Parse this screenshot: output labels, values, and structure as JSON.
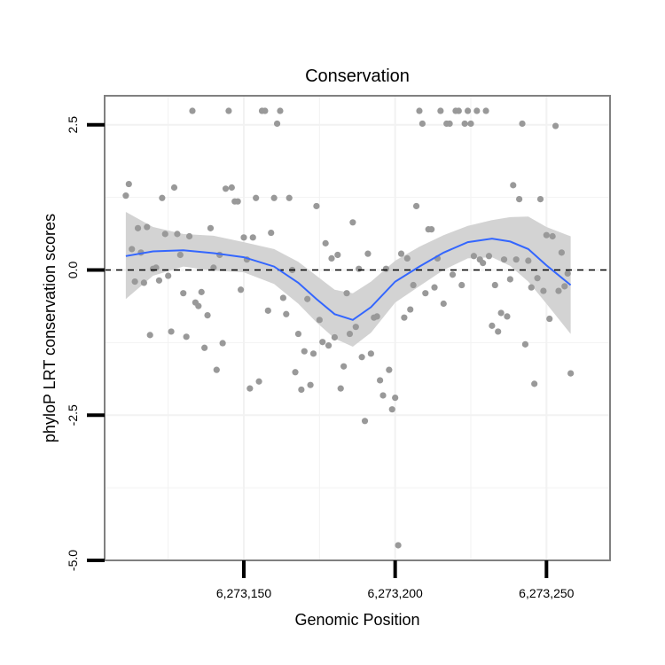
{
  "chart_data": {
    "type": "scatter",
    "title": "Conservation",
    "xlabel": "Genomic Position",
    "ylabel": "phyloP LRT conservation scores",
    "xlim": [
      6273104,
      6273271
    ],
    "ylim": [
      -5.0,
      3.0
    ],
    "x_ticks": [
      6273150,
      6273200,
      6273250
    ],
    "x_tick_labels": [
      "6,273,150",
      "6,273,200",
      "6,273,250"
    ],
    "y_ticks": [
      2.5,
      0.0,
      -2.5,
      -5.0
    ],
    "y_tick_labels": [
      "2.5",
      "0.0",
      "-2.5",
      "-5.0"
    ],
    "reference_line_y": 0.0,
    "grid": true,
    "colors": {
      "points": "#999999",
      "smooth_line": "#3366FF",
      "ribbon": "#D3D3D3",
      "panel_border": "#808080",
      "grid": "#F2F2F2"
    },
    "points": [
      {
        "x": 6273111,
        "y": 1.28
      },
      {
        "x": 6273112,
        "y": 1.48
      },
      {
        "x": 6273113,
        "y": 0.36
      },
      {
        "x": 6273114,
        "y": -0.2
      },
      {
        "x": 6273115,
        "y": 0.72
      },
      {
        "x": 6273116,
        "y": 0.3
      },
      {
        "x": 6273117,
        "y": -0.22
      },
      {
        "x": 6273118,
        "y": 0.74
      },
      {
        "x": 6273119,
        "y": -1.12
      },
      {
        "x": 6273120,
        "y": 0.02
      },
      {
        "x": 6273121,
        "y": 0.04
      },
      {
        "x": 6273122,
        "y": -0.18
      },
      {
        "x": 6273123,
        "y": 1.24
      },
      {
        "x": 6273124,
        "y": 0.62
      },
      {
        "x": 6273125,
        "y": -0.1
      },
      {
        "x": 6273126,
        "y": -1.06
      },
      {
        "x": 6273127,
        "y": 1.42
      },
      {
        "x": 6273128,
        "y": 0.62
      },
      {
        "x": 6273129,
        "y": 0.26
      },
      {
        "x": 6273130,
        "y": -0.4
      },
      {
        "x": 6273131,
        "y": -1.15
      },
      {
        "x": 6273132,
        "y": 0.58
      },
      {
        "x": 6273133,
        "y": 2.74
      },
      {
        "x": 6273134,
        "y": -0.56
      },
      {
        "x": 6273135,
        "y": -0.62
      },
      {
        "x": 6273136,
        "y": -0.38
      },
      {
        "x": 6273137,
        "y": -1.34
      },
      {
        "x": 6273138,
        "y": -0.78
      },
      {
        "x": 6273139,
        "y": 0.72
      },
      {
        "x": 6273140,
        "y": 0.04
      },
      {
        "x": 6273141,
        "y": -1.72
      },
      {
        "x": 6273142,
        "y": 0.26
      },
      {
        "x": 6273143,
        "y": -1.26
      },
      {
        "x": 6273144,
        "y": 1.4
      },
      {
        "x": 6273145,
        "y": 2.74
      },
      {
        "x": 6273146,
        "y": 1.42
      },
      {
        "x": 6273147,
        "y": 1.18
      },
      {
        "x": 6273148,
        "y": 1.18
      },
      {
        "x": 6273149,
        "y": -0.34
      },
      {
        "x": 6273150,
        "y": 0.56
      },
      {
        "x": 6273151,
        "y": 0.18
      },
      {
        "x": 6273152,
        "y": -2.04
      },
      {
        "x": 6273153,
        "y": 0.56
      },
      {
        "x": 6273154,
        "y": 1.24
      },
      {
        "x": 6273155,
        "y": -1.92
      },
      {
        "x": 6273156,
        "y": 2.74
      },
      {
        "x": 6273157,
        "y": 2.74
      },
      {
        "x": 6273158,
        "y": -0.7
      },
      {
        "x": 6273159,
        "y": 0.64
      },
      {
        "x": 6273160,
        "y": 1.24
      },
      {
        "x": 6273161,
        "y": 2.52
      },
      {
        "x": 6273162,
        "y": 2.74
      },
      {
        "x": 6273163,
        "y": -0.48
      },
      {
        "x": 6273164,
        "y": -0.76
      },
      {
        "x": 6273165,
        "y": 1.24
      },
      {
        "x": 6273166,
        "y": 0.0
      },
      {
        "x": 6273167,
        "y": -1.76
      },
      {
        "x": 6273168,
        "y": -1.1
      },
      {
        "x": 6273169,
        "y": -2.06
      },
      {
        "x": 6273170,
        "y": -1.4
      },
      {
        "x": 6273171,
        "y": -0.5
      },
      {
        "x": 6273172,
        "y": -1.98
      },
      {
        "x": 6273173,
        "y": -1.44
      },
      {
        "x": 6273174,
        "y": 1.1
      },
      {
        "x": 6273175,
        "y": -0.86
      },
      {
        "x": 6273176,
        "y": -1.24
      },
      {
        "x": 6273177,
        "y": 0.46
      },
      {
        "x": 6273178,
        "y": -1.3
      },
      {
        "x": 6273179,
        "y": 0.2
      },
      {
        "x": 6273180,
        "y": -1.16
      },
      {
        "x": 6273181,
        "y": 0.26
      },
      {
        "x": 6273182,
        "y": -2.04
      },
      {
        "x": 6273183,
        "y": -1.66
      },
      {
        "x": 6273184,
        "y": -0.4
      },
      {
        "x": 6273185,
        "y": -1.1
      },
      {
        "x": 6273186,
        "y": 0.82
      },
      {
        "x": 6273187,
        "y": -0.98
      },
      {
        "x": 6273188,
        "y": 0.02
      },
      {
        "x": 6273189,
        "y": -1.5
      },
      {
        "x": 6273190,
        "y": -2.6
      },
      {
        "x": 6273191,
        "y": 0.28
      },
      {
        "x": 6273192,
        "y": -1.44
      },
      {
        "x": 6273193,
        "y": -0.82
      },
      {
        "x": 6273194,
        "y": -0.8
      },
      {
        "x": 6273195,
        "y": -1.9
      },
      {
        "x": 6273196,
        "y": -2.16
      },
      {
        "x": 6273197,
        "y": 0.02
      },
      {
        "x": 6273198,
        "y": -1.72
      },
      {
        "x": 6273199,
        "y": -2.4
      },
      {
        "x": 6273200,
        "y": -2.2
      },
      {
        "x": 6273201,
        "y": -4.74
      },
      {
        "x": 6273202,
        "y": 0.28
      },
      {
        "x": 6273203,
        "y": -0.82
      },
      {
        "x": 6273204,
        "y": 0.2
      },
      {
        "x": 6273205,
        "y": -0.68
      },
      {
        "x": 6273206,
        "y": -0.26
      },
      {
        "x": 6273207,
        "y": 1.1
      },
      {
        "x": 6273208,
        "y": 2.74
      },
      {
        "x": 6273209,
        "y": 2.52
      },
      {
        "x": 6273210,
        "y": -0.4
      },
      {
        "x": 6273211,
        "y": 0.7
      },
      {
        "x": 6273212,
        "y": 0.7
      },
      {
        "x": 6273213,
        "y": -0.3
      },
      {
        "x": 6273214,
        "y": 0.2
      },
      {
        "x": 6273215,
        "y": 2.74
      },
      {
        "x": 6273216,
        "y": -0.58
      },
      {
        "x": 6273217,
        "y": 2.52
      },
      {
        "x": 6273218,
        "y": 2.52
      },
      {
        "x": 6273219,
        "y": -0.08
      },
      {
        "x": 6273220,
        "y": 2.74
      },
      {
        "x": 6273221,
        "y": 2.74
      },
      {
        "x": 6273222,
        "y": -0.26
      },
      {
        "x": 6273223,
        "y": 2.52
      },
      {
        "x": 6273224,
        "y": 2.74
      },
      {
        "x": 6273225,
        "y": 2.52
      },
      {
        "x": 6273226,
        "y": 0.24
      },
      {
        "x": 6273227,
        "y": 2.74
      },
      {
        "x": 6273228,
        "y": 0.18
      },
      {
        "x": 6273229,
        "y": 0.12
      },
      {
        "x": 6273230,
        "y": 2.74
      },
      {
        "x": 6273231,
        "y": 0.24
      },
      {
        "x": 6273232,
        "y": -0.96
      },
      {
        "x": 6273233,
        "y": -0.26
      },
      {
        "x": 6273234,
        "y": -1.06
      },
      {
        "x": 6273235,
        "y": -0.74
      },
      {
        "x": 6273236,
        "y": 0.18
      },
      {
        "x": 6273237,
        "y": -0.8
      },
      {
        "x": 6273238,
        "y": -0.16
      },
      {
        "x": 6273239,
        "y": 1.46
      },
      {
        "x": 6273240,
        "y": 0.18
      },
      {
        "x": 6273241,
        "y": 1.22
      },
      {
        "x": 6273242,
        "y": 2.52
      },
      {
        "x": 6273243,
        "y": -1.28
      },
      {
        "x": 6273244,
        "y": 0.16
      },
      {
        "x": 6273245,
        "y": -0.3
      },
      {
        "x": 6273246,
        "y": -1.96
      },
      {
        "x": 6273247,
        "y": -0.14
      },
      {
        "x": 6273248,
        "y": 1.22
      },
      {
        "x": 6273249,
        "y": -0.36
      },
      {
        "x": 6273250,
        "y": 0.6
      },
      {
        "x": 6273251,
        "y": -0.84
      },
      {
        "x": 6273252,
        "y": 0.58
      },
      {
        "x": 6273253,
        "y": 2.48
      },
      {
        "x": 6273254,
        "y": -0.36
      },
      {
        "x": 6273255,
        "y": 0.3
      },
      {
        "x": 6273256,
        "y": -0.28
      },
      {
        "x": 6273257,
        "y": -0.06
      },
      {
        "x": 6273258,
        "y": -1.78
      }
    ],
    "smooth": {
      "x": [
        6273111,
        6273120,
        6273130,
        6273140,
        6273150,
        6273160,
        6273168,
        6273174,
        6273180,
        6273186,
        6273192,
        6273200,
        6273208,
        6273216,
        6273224,
        6273232,
        6273238,
        6273244,
        6273250,
        6273258
      ],
      "y": [
        0.24,
        0.32,
        0.34,
        0.29,
        0.22,
        0.06,
        -0.22,
        -0.5,
        -0.76,
        -0.86,
        -0.64,
        -0.2,
        0.06,
        0.3,
        0.48,
        0.54,
        0.49,
        0.36,
        0.08,
        -0.26
      ],
      "lower": [
        -0.5,
        -0.1,
        0.06,
        -0.01,
        -0.04,
        -0.24,
        -0.58,
        -0.9,
        -1.18,
        -1.32,
        -1.08,
        -0.56,
        -0.28,
        0.0,
        0.2,
        0.22,
        0.07,
        -0.2,
        -0.58,
        -1.1
      ],
      "upper": [
        1.0,
        0.74,
        0.62,
        0.59,
        0.48,
        0.36,
        0.14,
        -0.1,
        -0.34,
        -0.4,
        -0.2,
        0.16,
        0.4,
        0.6,
        0.76,
        0.86,
        0.91,
        0.92,
        0.74,
        0.58
      ]
    }
  }
}
